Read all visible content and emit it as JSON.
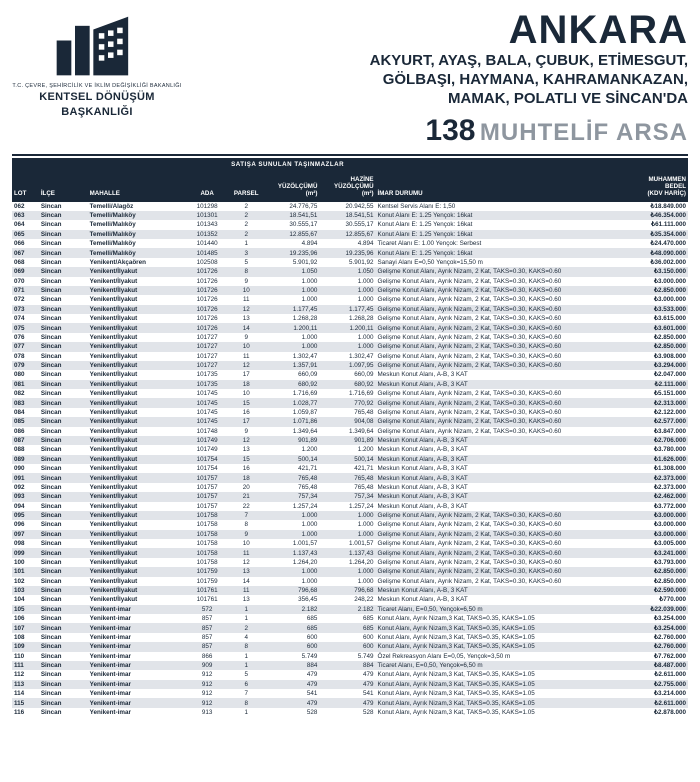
{
  "colors": {
    "primary": "#1a2838",
    "muted": "#8e969f",
    "row_alt": "#e1e4e9",
    "row_bg": "#ffffff"
  },
  "logo": {
    "ministry_line": "T.C. ÇEVRE, ŞEHİRCİLİK VE İKLİM DEĞİŞİKLİĞİ BAKANLIĞI",
    "title_l1": "KENTSEL DÖNÜŞÜM",
    "title_l2": "BAŞKANLIĞI"
  },
  "headline": {
    "city": "ANKARA",
    "districts_l1": "AKYURT, AYAŞ, BALA, ÇUBUK, ETİMESGUT,",
    "districts_l2": "GÖLBAŞI, HAYMANA, KAHRAMANKAZAN,",
    "districts_l3": "MAMAK, POLATLI VE SİNCAN'DA",
    "count": "138",
    "count_label": "MUHTELİF ARSA"
  },
  "table": {
    "section_title": "SATIŞA SUNULAN TAŞINMAZLAR",
    "headers": {
      "lot": "LOT",
      "ilce": "İLÇE",
      "mahalle": "MAHALLE",
      "ada": "ADA",
      "parsel": "PARSEL",
      "yuzolcumu": "YÜZÖLÇÜMÜ\n(m²)",
      "hazine_yuzolcumu": "HAZİNE\nYÜZÖLÇÜMÜ (m²)",
      "imar": "İMAR DURUMU",
      "bedel": "MUHAMMEN\nBEDEL\n(KDV HARİÇ)"
    },
    "rows": [
      {
        "lot": "062",
        "ilce": "Sincan",
        "mah": "Temelli/Alagöz",
        "ada": "101298",
        "parsel": "2",
        "yuz": "24.776,75",
        "hyuz": "20.942,55",
        "imar": "Kentsel Servis Alanı E: 1,50",
        "bedel": "₺18.849.000"
      },
      {
        "lot": "063",
        "ilce": "Sincan",
        "mah": "Temelli/Malıköy",
        "ada": "101301",
        "parsel": "2",
        "yuz": "18.541,51",
        "hyuz": "18.541,51",
        "imar": "Konut Alanı E: 1.25 Yençok: 16kat",
        "bedel": "₺46.354.000"
      },
      {
        "lot": "064",
        "ilce": "Sincan",
        "mah": "Temelli/Malıköy",
        "ada": "101343",
        "parsel": "2",
        "yuz": "30.555,17",
        "hyuz": "30.555,17",
        "imar": "Konut Alanı E: 1.25 Yençok: 16kat",
        "bedel": "₺61.111.000"
      },
      {
        "lot": "065",
        "ilce": "Sincan",
        "mah": "Temelli/Malıköy",
        "ada": "101352",
        "parsel": "2",
        "yuz": "12.855,67",
        "hyuz": "12.855,67",
        "imar": "Konut Alanı E: 1.25 Yençok: 16kat",
        "bedel": "₺35.354.000"
      },
      {
        "lot": "066",
        "ilce": "Sincan",
        "mah": "Temelli/Malıköy",
        "ada": "101440",
        "parsel": "1",
        "yuz": "4.894",
        "hyuz": "4.894",
        "imar": "Ticaret Alanı E: 1.00 Yençok: Serbest",
        "bedel": "₺24.470.000"
      },
      {
        "lot": "067",
        "ilce": "Sincan",
        "mah": "Temelli/Malıköy",
        "ada": "101485",
        "parsel": "3",
        "yuz": "19.235,96",
        "hyuz": "19.235,96",
        "imar": "Konut Alanı E: 1.25 Yençok: 16kat",
        "bedel": "₺48.090.000"
      },
      {
        "lot": "068",
        "ilce": "Sincan",
        "mah": "Yenikent/Akçaören",
        "ada": "102508",
        "parsel": "5",
        "yuz": "5.901,92",
        "hyuz": "5.901,92",
        "imar": "Sanayi Alanı E=0,50 Yençok=15,50 m",
        "bedel": "₺36.002.000"
      },
      {
        "lot": "069",
        "ilce": "Sincan",
        "mah": "Yenikent/İlyakut",
        "ada": "101726",
        "parsel": "8",
        "yuz": "1.050",
        "hyuz": "1.050",
        "imar": "Gelişme Konut Alanı, Ayrık Nizam, 2 Kat, TAKS=0.30, KAKS=0.60",
        "bedel": "₺3.150.000"
      },
      {
        "lot": "070",
        "ilce": "Sincan",
        "mah": "Yenikent/İlyakut",
        "ada": "101726",
        "parsel": "9",
        "yuz": "1.000",
        "hyuz": "1.000",
        "imar": "Gelişme Konut Alanı, Ayrık Nizam, 2 Kat, TAKS=0.30, KAKS=0.60",
        "bedel": "₺3.000.000"
      },
      {
        "lot": "071",
        "ilce": "Sincan",
        "mah": "Yenikent/İlyakut",
        "ada": "101726",
        "parsel": "10",
        "yuz": "1.000",
        "hyuz": "1.000",
        "imar": "Gelişme Konut Alanı, Ayrık Nizam, 2 Kat, TAKS=0.30, KAKS=0.60",
        "bedel": "₺2.850.000"
      },
      {
        "lot": "072",
        "ilce": "Sincan",
        "mah": "Yenikent/İlyakut",
        "ada": "101726",
        "parsel": "11",
        "yuz": "1.000",
        "hyuz": "1.000",
        "imar": "Gelişme Konut Alanı, Ayrık Nizam, 2 Kat, TAKS=0.30, KAKS=0.60",
        "bedel": "₺3.000.000"
      },
      {
        "lot": "073",
        "ilce": "Sincan",
        "mah": "Yenikent/İlyakut",
        "ada": "101726",
        "parsel": "12",
        "yuz": "1.177,45",
        "hyuz": "1.177,45",
        "imar": "Gelişme Konut Alanı, Ayrık Nizam, 2 Kat, TAKS=0.30, KAKS=0.60",
        "bedel": "₺3.533.000"
      },
      {
        "lot": "074",
        "ilce": "Sincan",
        "mah": "Yenikent/İlyakut",
        "ada": "101726",
        "parsel": "13",
        "yuz": "1.268,28",
        "hyuz": "1.268,28",
        "imar": "Gelişme Konut Alanı, Ayrık Nizam, 2 Kat, TAKS=0.30, KAKS=0.60",
        "bedel": "₺3.615.000"
      },
      {
        "lot": "075",
        "ilce": "Sincan",
        "mah": "Yenikent/İlyakut",
        "ada": "101726",
        "parsel": "14",
        "yuz": "1.200,11",
        "hyuz": "1.200,11",
        "imar": "Gelişme Konut Alanı, Ayrık Nizam, 2 Kat, TAKS=0.30, KAKS=0.60",
        "bedel": "₺3.601.000"
      },
      {
        "lot": "076",
        "ilce": "Sincan",
        "mah": "Yenikent/İlyakut",
        "ada": "101727",
        "parsel": "9",
        "yuz": "1.000",
        "hyuz": "1.000",
        "imar": "Gelişme Konut Alanı, Ayrık Nizam, 2 Kat, TAKS=0.30, KAKS=0.60",
        "bedel": "₺2.850.000"
      },
      {
        "lot": "077",
        "ilce": "Sincan",
        "mah": "Yenikent/İlyakut",
        "ada": "101727",
        "parsel": "10",
        "yuz": "1.000",
        "hyuz": "1.000",
        "imar": "Gelişme Konut Alanı, Ayrık Nizam, 2 Kat, TAKS=0.30, KAKS=0.60",
        "bedel": "₺2.850.000"
      },
      {
        "lot": "078",
        "ilce": "Sincan",
        "mah": "Yenikent/İlyakut",
        "ada": "101727",
        "parsel": "11",
        "yuz": "1.302,47",
        "hyuz": "1.302,47",
        "imar": "Gelişme Konut Alanı, Ayrık Nizam, 2 Kat, TAKS=0.30, KAKS=0.60",
        "bedel": "₺3.908.000"
      },
      {
        "lot": "079",
        "ilce": "Sincan",
        "mah": "Yenikent/İlyakut",
        "ada": "101727",
        "parsel": "12",
        "yuz": "1.357,91",
        "hyuz": "1.097,95",
        "imar": "Gelişme Konut Alanı, Ayrık Nizam, 2 Kat, TAKS=0.30, KAKS=0.60",
        "bedel": "₺3.294.000"
      },
      {
        "lot": "080",
        "ilce": "Sincan",
        "mah": "Yenikent/İlyakut",
        "ada": "101735",
        "parsel": "17",
        "yuz": "660,09",
        "hyuz": "660,09",
        "imar": "Meskun Konut Alanı, A-B, 3 KAT",
        "bedel": "₺2.047.000"
      },
      {
        "lot": "081",
        "ilce": "Sincan",
        "mah": "Yenikent/İlyakut",
        "ada": "101735",
        "parsel": "18",
        "yuz": "680,92",
        "hyuz": "680,92",
        "imar": "Meskun Konut Alanı, A-B, 3 KAT",
        "bedel": "₺2.111.000"
      },
      {
        "lot": "082",
        "ilce": "Sincan",
        "mah": "Yenikent/İlyakut",
        "ada": "101745",
        "parsel": "10",
        "yuz": "1.716,69",
        "hyuz": "1.716,69",
        "imar": "Gelişme Konut Alanı, Ayrık Nizam, 2 Kat, TAKS=0.30, KAKS=0.60",
        "bedel": "₺5.151.000"
      },
      {
        "lot": "083",
        "ilce": "Sincan",
        "mah": "Yenikent/İlyakut",
        "ada": "101745",
        "parsel": "15",
        "yuz": "1.028,77",
        "hyuz": "770,92",
        "imar": "Gelişme Konut Alanı, Ayrık Nizam, 2 Kat, TAKS=0.30, KAKS=0.60",
        "bedel": "₺2.313.000"
      },
      {
        "lot": "084",
        "ilce": "Sincan",
        "mah": "Yenikent/İlyakut",
        "ada": "101745",
        "parsel": "16",
        "yuz": "1.059,87",
        "hyuz": "765,48",
        "imar": "Gelişme Konut Alanı, Ayrık Nizam, 2 Kat, TAKS=0.30, KAKS=0.60",
        "bedel": "₺2.122.000"
      },
      {
        "lot": "085",
        "ilce": "Sincan",
        "mah": "Yenikent/İlyakut",
        "ada": "101745",
        "parsel": "17",
        "yuz": "1.071,86",
        "hyuz": "904,08",
        "imar": "Gelişme Konut Alanı, Ayrık Nizam, 2 Kat, TAKS=0.30, KAKS=0.60",
        "bedel": "₺2.577.000"
      },
      {
        "lot": "086",
        "ilce": "Sincan",
        "mah": "Yenikent/İlyakut",
        "ada": "101748",
        "parsel": "9",
        "yuz": "1.349,64",
        "hyuz": "1.349,64",
        "imar": "Gelişme Konut Alanı, Ayrık Nizam, 2 Kat, TAKS=0.30, KAKS=0.60",
        "bedel": "₺3.847.000"
      },
      {
        "lot": "087",
        "ilce": "Sincan",
        "mah": "Yenikent/İlyakut",
        "ada": "101749",
        "parsel": "12",
        "yuz": "901,89",
        "hyuz": "901,89",
        "imar": "Meskun Konut Alanı, A-B, 3 KAT",
        "bedel": "₺2.706.000"
      },
      {
        "lot": "088",
        "ilce": "Sincan",
        "mah": "Yenikent/İlyakut",
        "ada": "101749",
        "parsel": "13",
        "yuz": "1.200",
        "hyuz": "1.200",
        "imar": "Meskun Konut Alanı, A-B, 3 KAT",
        "bedel": "₺3.780.000"
      },
      {
        "lot": "089",
        "ilce": "Sincan",
        "mah": "Yenikent/İlyakut",
        "ada": "101754",
        "parsel": "15",
        "yuz": "500,14",
        "hyuz": "500,14",
        "imar": "Meskun Konut Alanı, A-B, 3 KAT",
        "bedel": "₺1.626.000"
      },
      {
        "lot": "090",
        "ilce": "Sincan",
        "mah": "Yenikent/İlyakut",
        "ada": "101754",
        "parsel": "16",
        "yuz": "421,71",
        "hyuz": "421,71",
        "imar": "Meskun Konut Alanı, A-B, 3 KAT",
        "bedel": "₺1.308.000"
      },
      {
        "lot": "091",
        "ilce": "Sincan",
        "mah": "Yenikent/İlyakut",
        "ada": "101757",
        "parsel": "18",
        "yuz": "765,48",
        "hyuz": "765,48",
        "imar": "Meskun Konut Alanı, A-B, 3 KAT",
        "bedel": "₺2.373.000"
      },
      {
        "lot": "092",
        "ilce": "Sincan",
        "mah": "Yenikent/İlyakut",
        "ada": "101757",
        "parsel": "20",
        "yuz": "765,48",
        "hyuz": "765,48",
        "imar": "Meskun Konut Alanı, A-B, 3 KAT",
        "bedel": "₺2.373.000"
      },
      {
        "lot": "093",
        "ilce": "Sincan",
        "mah": "Yenikent/İlyakut",
        "ada": "101757",
        "parsel": "21",
        "yuz": "757,34",
        "hyuz": "757,34",
        "imar": "Meskun Konut Alanı, A-B, 3 KAT",
        "bedel": "₺2.462.000"
      },
      {
        "lot": "094",
        "ilce": "Sincan",
        "mah": "Yenikent/İlyakut",
        "ada": "101757",
        "parsel": "22",
        "yuz": "1.257,24",
        "hyuz": "1.257,24",
        "imar": "Meskun Konut Alanı, A-B, 3 KAT",
        "bedel": "₺3.772.000"
      },
      {
        "lot": "095",
        "ilce": "Sincan",
        "mah": "Yenikent/İlyakut",
        "ada": "101758",
        "parsel": "7",
        "yuz": "1.000",
        "hyuz": "1.000",
        "imar": "Gelişme Konut Alanı, Ayrık Nizam, 2 Kat, TAKS=0.30, KAKS=0.60",
        "bedel": "₺3.000.000"
      },
      {
        "lot": "096",
        "ilce": "Sincan",
        "mah": "Yenikent/İlyakut",
        "ada": "101758",
        "parsel": "8",
        "yuz": "1.000",
        "hyuz": "1.000",
        "imar": "Gelişme Konut Alanı, Ayrık Nizam, 2 Kat, TAKS=0.30, KAKS=0.60",
        "bedel": "₺3.000.000"
      },
      {
        "lot": "097",
        "ilce": "Sincan",
        "mah": "Yenikent/İlyakut",
        "ada": "101758",
        "parsel": "9",
        "yuz": "1.000",
        "hyuz": "1.000",
        "imar": "Gelişme Konut Alanı, Ayrık Nizam, 2 Kat, TAKS=0.30, KAKS=0.60",
        "bedel": "₺3.000.000"
      },
      {
        "lot": "098",
        "ilce": "Sincan",
        "mah": "Yenikent/İlyakut",
        "ada": "101758",
        "parsel": "10",
        "yuz": "1.001,57",
        "hyuz": "1.001,57",
        "imar": "Gelişme Konut Alanı, Ayrık Nizam, 2 Kat, TAKS=0.30, KAKS=0.60",
        "bedel": "₺3.005.000"
      },
      {
        "lot": "099",
        "ilce": "Sincan",
        "mah": "Yenikent/İlyakut",
        "ada": "101758",
        "parsel": "11",
        "yuz": "1.137,43",
        "hyuz": "1.137,43",
        "imar": "Gelişme Konut Alanı, Ayrık Nizam, 2 Kat, TAKS=0.30, KAKS=0.60",
        "bedel": "₺3.241.000"
      },
      {
        "lot": "100",
        "ilce": "Sincan",
        "mah": "Yenikent/İlyakut",
        "ada": "101758",
        "parsel": "12",
        "yuz": "1.264,20",
        "hyuz": "1.264,20",
        "imar": "Gelişme Konut Alanı, Ayrık Nizam, 2 Kat, TAKS=0.30, KAKS=0.60",
        "bedel": "₺3.793.000"
      },
      {
        "lot": "101",
        "ilce": "Sincan",
        "mah": "Yenikent/İlyakut",
        "ada": "101759",
        "parsel": "13",
        "yuz": "1.000",
        "hyuz": "1.000",
        "imar": "Gelişme Konut Alanı, Ayrık Nizam, 2 Kat, TAKS=0.30, KAKS=0.60",
        "bedel": "₺2.850.000"
      },
      {
        "lot": "102",
        "ilce": "Sincan",
        "mah": "Yenikent/İlyakut",
        "ada": "101759",
        "parsel": "14",
        "yuz": "1.000",
        "hyuz": "1.000",
        "imar": "Gelişme Konut Alanı, Ayrık Nizam, 2 Kat, TAKS=0.30, KAKS=0.60",
        "bedel": "₺2.850.000"
      },
      {
        "lot": "103",
        "ilce": "Sincan",
        "mah": "Yenikent/İlyakut",
        "ada": "101761",
        "parsel": "11",
        "yuz": "796,68",
        "hyuz": "796,68",
        "imar": "Meskun Konut Alanı, A-B, 3 KAT",
        "bedel": "₺2.590.000"
      },
      {
        "lot": "104",
        "ilce": "Sincan",
        "mah": "Yenikent/İlyakut",
        "ada": "101761",
        "parsel": "13",
        "yuz": "356,45",
        "hyuz": "248,22",
        "imar": "Meskun Konut Alanı, A-B, 3 KAT",
        "bedel": "₺770.000"
      },
      {
        "lot": "105",
        "ilce": "Sincan",
        "mah": "Yenikent-imar",
        "ada": "572",
        "parsel": "1",
        "yuz": "2.182",
        "hyuz": "2.182",
        "imar": "Ticaret Alanı, E=0,50, Yençok=6,50 m",
        "bedel": "₺22.039.000"
      },
      {
        "lot": "106",
        "ilce": "Sincan",
        "mah": "Yenikent-imar",
        "ada": "857",
        "parsel": "1",
        "yuz": "685",
        "hyuz": "685",
        "imar": "Konut Alanı, Ayrık Nizam,3 Kat, TAKS=0.35, KAKS=1.05",
        "bedel": "₺3.254.000"
      },
      {
        "lot": "107",
        "ilce": "Sincan",
        "mah": "Yenikent-imar",
        "ada": "857",
        "parsel": "2",
        "yuz": "685",
        "hyuz": "685",
        "imar": "Konut Alanı, Ayrık Nizam,3 Kat, TAKS=0.35, KAKS=1.05",
        "bedel": "₺3.254.000"
      },
      {
        "lot": "108",
        "ilce": "Sincan",
        "mah": "Yenikent-imar",
        "ada": "857",
        "parsel": "4",
        "yuz": "600",
        "hyuz": "600",
        "imar": "Konut Alanı, Ayrık Nizam,3 Kat, TAKS=0.35, KAKS=1.05",
        "bedel": "₺2.760.000"
      },
      {
        "lot": "109",
        "ilce": "Sincan",
        "mah": "Yenikent-imar",
        "ada": "857",
        "parsel": "8",
        "yuz": "600",
        "hyuz": "600",
        "imar": "Konut Alanı, Ayrık Nizam,3 Kat, TAKS=0.35, KAKS=1.05",
        "bedel": "₺2.760.000"
      },
      {
        "lot": "110",
        "ilce": "Sincan",
        "mah": "Yenikent-imar",
        "ada": "866",
        "parsel": "1",
        "yuz": "5.749",
        "hyuz": "5.749",
        "imar": "Özel Rekreasyon Alanı E=0,05, Yençok=3,50 m",
        "bedel": "₺7.762.000"
      },
      {
        "lot": "111",
        "ilce": "Sincan",
        "mah": "Yenikent-imar",
        "ada": "909",
        "parsel": "1",
        "yuz": "884",
        "hyuz": "884",
        "imar": "Ticaret Alanı, E=0,50, Yençok=6,50 m",
        "bedel": "₺8.487.000"
      },
      {
        "lot": "112",
        "ilce": "Sincan",
        "mah": "Yenikent-imar",
        "ada": "912",
        "parsel": "5",
        "yuz": "479",
        "hyuz": "479",
        "imar": "Konut Alanı, Ayrık Nizam,3 Kat, TAKS=0.35, KAKS=1.05",
        "bedel": "₺2.611.000"
      },
      {
        "lot": "113",
        "ilce": "Sincan",
        "mah": "Yenikent-imar",
        "ada": "912",
        "parsel": "6",
        "yuz": "479",
        "hyuz": "479",
        "imar": "Konut Alanı, Ayrık Nizam,3 Kat, TAKS=0.35, KAKS=1.05",
        "bedel": "₺2.755.000"
      },
      {
        "lot": "114",
        "ilce": "Sincan",
        "mah": "Yenikent-imar",
        "ada": "912",
        "parsel": "7",
        "yuz": "541",
        "hyuz": "541",
        "imar": "Konut Alanı, Ayrık Nizam,3 Kat, TAKS=0.35, KAKS=1.05",
        "bedel": "₺3.214.000"
      },
      {
        "lot": "115",
        "ilce": "Sincan",
        "mah": "Yenikent-imar",
        "ada": "912",
        "parsel": "8",
        "yuz": "479",
        "hyuz": "479",
        "imar": "Konut Alanı, Ayrık Nizam,3 Kat, TAKS=0.35, KAKS=1.05",
        "bedel": "₺2.611.000"
      },
      {
        "lot": "116",
        "ilce": "Sincan",
        "mah": "Yenikent-imar",
        "ada": "913",
        "parsel": "1",
        "yuz": "528",
        "hyuz": "528",
        "imar": "Konut Alanı, Ayrık Nizam,3 Kat, TAKS=0.35, KAKS=1.05",
        "bedel": "₺2.878.000"
      }
    ]
  }
}
